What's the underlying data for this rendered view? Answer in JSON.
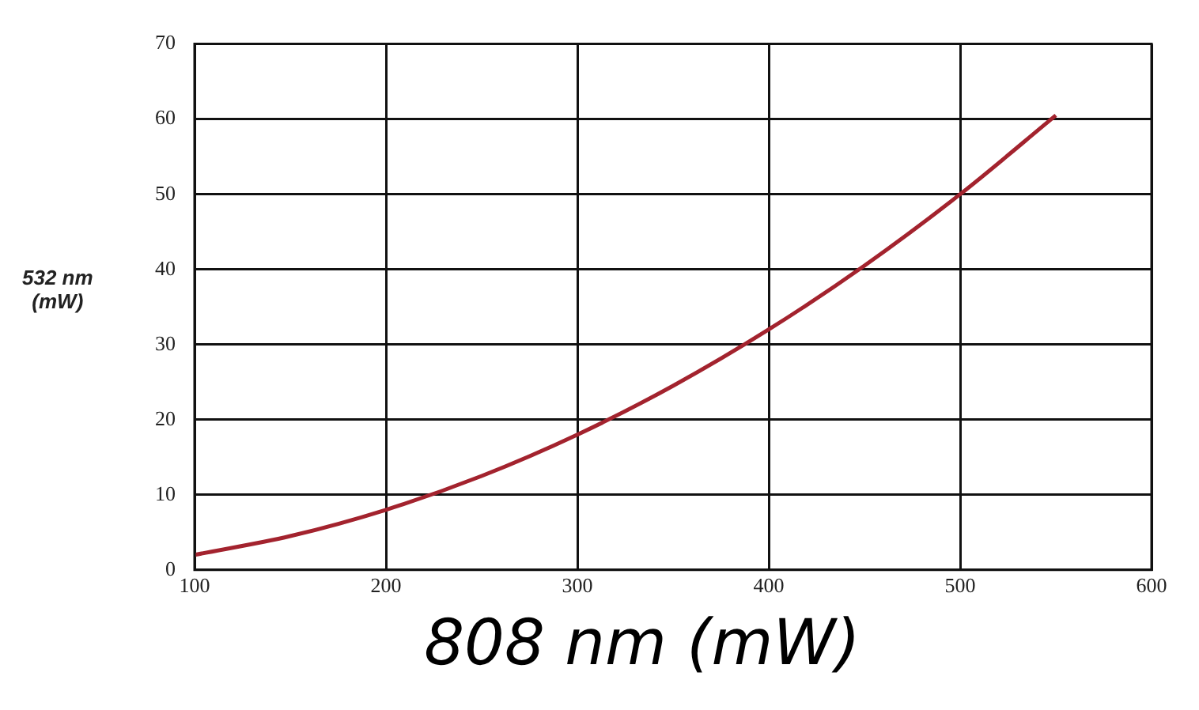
{
  "chart_data": {
    "type": "line",
    "xlabel": "808 nm (mW)",
    "ylabel": "532 nm\n(mW)",
    "x": [
      100,
      150,
      200,
      250,
      300,
      350,
      400,
      450,
      500,
      550
    ],
    "series": [
      {
        "color": "#a3232e",
        "values": [
          2,
          4.5,
          8,
          12.5,
          18,
          24.5,
          32,
          40.5,
          50,
          60.5
        ]
      }
    ],
    "xlim": [
      100,
      600
    ],
    "xticks": [
      100,
      200,
      300,
      400,
      500,
      600
    ],
    "ylim": [
      0,
      70
    ],
    "yticks": [
      0,
      10,
      20,
      30,
      40,
      50,
      60,
      70
    ],
    "grid": true,
    "legend": false,
    "marker": "none",
    "line_style": "solid"
  }
}
